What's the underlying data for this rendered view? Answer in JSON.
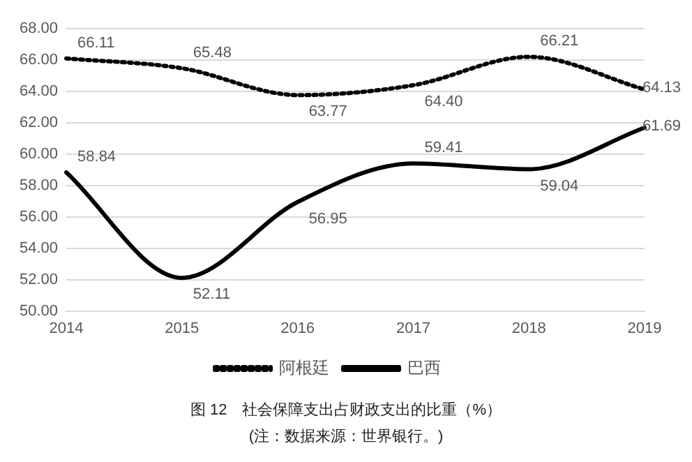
{
  "chart_data": {
    "type": "line",
    "title": "图 12　社会保障支出占财政支出的比重（%）",
    "annotations": [
      "(注：数据来源：世界银行。)"
    ],
    "categories": [
      "2014",
      "2015",
      "2016",
      "2017",
      "2018",
      "2019"
    ],
    "series": [
      {
        "name": "阿根廷",
        "color": "#000000",
        "line_style": "dotted",
        "values": [
          66.11,
          65.48,
          63.77,
          64.4,
          66.21,
          64.13
        ],
        "value_labels": [
          "66.11",
          "65.48",
          "63.77",
          "64.40",
          "66.21",
          "64.13"
        ]
      },
      {
        "name": "巴西",
        "color": "#000000",
        "line_style": "solid",
        "values": [
          58.84,
          52.11,
          56.95,
          59.41,
          59.04,
          61.69
        ],
        "value_labels": [
          "58.84",
          "52.11",
          "56.95",
          "59.41",
          "59.04",
          "61.69"
        ]
      }
    ],
    "ylim": [
      50,
      68
    ],
    "yticks": [
      {
        "value": 50,
        "label": "50.00"
      },
      {
        "value": 52,
        "label": "52.00"
      },
      {
        "value": 54,
        "label": "54.00"
      },
      {
        "value": 56,
        "label": "56.00"
      },
      {
        "value": 58,
        "label": "58.00"
      },
      {
        "value": 60,
        "label": "60.00"
      },
      {
        "value": 62,
        "label": "62.00"
      },
      {
        "value": 64,
        "label": "64.00"
      },
      {
        "value": 66,
        "label": "66.00"
      },
      {
        "value": 68,
        "label": "68.00"
      }
    ],
    "grid": "y",
    "legend": "bottom",
    "marker": "none"
  }
}
